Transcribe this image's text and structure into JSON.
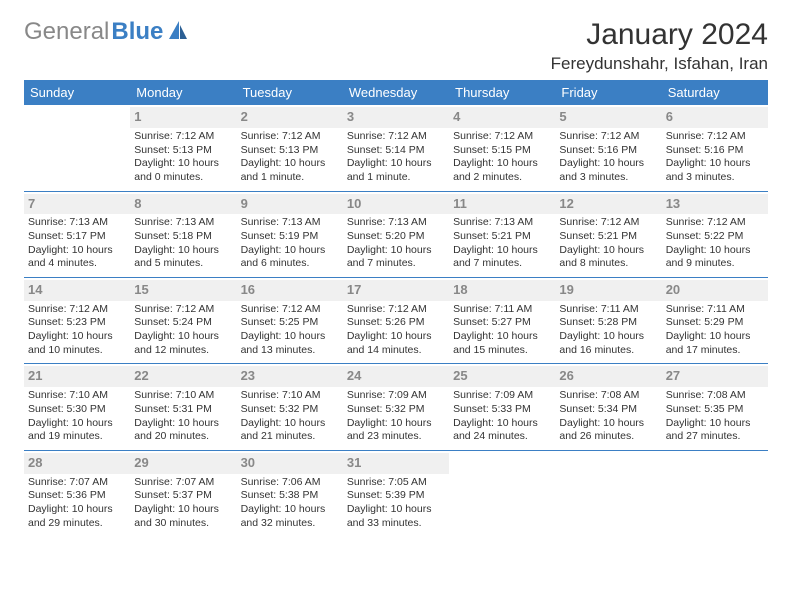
{
  "logo": {
    "gray": "General",
    "blue": "Blue"
  },
  "title": "January 2024",
  "location": "Fereydunshahr, Isfahan, Iran",
  "colors": {
    "header_bg": "#3b7fc4",
    "header_fg": "#ffffff",
    "daynum_bg": "#f0f0f0",
    "daynum_fg": "#888888"
  },
  "day_headers": [
    "Sunday",
    "Monday",
    "Tuesday",
    "Wednesday",
    "Thursday",
    "Friday",
    "Saturday"
  ],
  "weeks": [
    [
      null,
      {
        "n": "1",
        "sr": "Sunrise: 7:12 AM",
        "ss": "Sunset: 5:13 PM",
        "d1": "Daylight: 10 hours",
        "d2": "and 0 minutes."
      },
      {
        "n": "2",
        "sr": "Sunrise: 7:12 AM",
        "ss": "Sunset: 5:13 PM",
        "d1": "Daylight: 10 hours",
        "d2": "and 1 minute."
      },
      {
        "n": "3",
        "sr": "Sunrise: 7:12 AM",
        "ss": "Sunset: 5:14 PM",
        "d1": "Daylight: 10 hours",
        "d2": "and 1 minute."
      },
      {
        "n": "4",
        "sr": "Sunrise: 7:12 AM",
        "ss": "Sunset: 5:15 PM",
        "d1": "Daylight: 10 hours",
        "d2": "and 2 minutes."
      },
      {
        "n": "5",
        "sr": "Sunrise: 7:12 AM",
        "ss": "Sunset: 5:16 PM",
        "d1": "Daylight: 10 hours",
        "d2": "and 3 minutes."
      },
      {
        "n": "6",
        "sr": "Sunrise: 7:12 AM",
        "ss": "Sunset: 5:16 PM",
        "d1": "Daylight: 10 hours",
        "d2": "and 3 minutes."
      }
    ],
    [
      {
        "n": "7",
        "sr": "Sunrise: 7:13 AM",
        "ss": "Sunset: 5:17 PM",
        "d1": "Daylight: 10 hours",
        "d2": "and 4 minutes."
      },
      {
        "n": "8",
        "sr": "Sunrise: 7:13 AM",
        "ss": "Sunset: 5:18 PM",
        "d1": "Daylight: 10 hours",
        "d2": "and 5 minutes."
      },
      {
        "n": "9",
        "sr": "Sunrise: 7:13 AM",
        "ss": "Sunset: 5:19 PM",
        "d1": "Daylight: 10 hours",
        "d2": "and 6 minutes."
      },
      {
        "n": "10",
        "sr": "Sunrise: 7:13 AM",
        "ss": "Sunset: 5:20 PM",
        "d1": "Daylight: 10 hours",
        "d2": "and 7 minutes."
      },
      {
        "n": "11",
        "sr": "Sunrise: 7:13 AM",
        "ss": "Sunset: 5:21 PM",
        "d1": "Daylight: 10 hours",
        "d2": "and 7 minutes."
      },
      {
        "n": "12",
        "sr": "Sunrise: 7:12 AM",
        "ss": "Sunset: 5:21 PM",
        "d1": "Daylight: 10 hours",
        "d2": "and 8 minutes."
      },
      {
        "n": "13",
        "sr": "Sunrise: 7:12 AM",
        "ss": "Sunset: 5:22 PM",
        "d1": "Daylight: 10 hours",
        "d2": "and 9 minutes."
      }
    ],
    [
      {
        "n": "14",
        "sr": "Sunrise: 7:12 AM",
        "ss": "Sunset: 5:23 PM",
        "d1": "Daylight: 10 hours",
        "d2": "and 10 minutes."
      },
      {
        "n": "15",
        "sr": "Sunrise: 7:12 AM",
        "ss": "Sunset: 5:24 PM",
        "d1": "Daylight: 10 hours",
        "d2": "and 12 minutes."
      },
      {
        "n": "16",
        "sr": "Sunrise: 7:12 AM",
        "ss": "Sunset: 5:25 PM",
        "d1": "Daylight: 10 hours",
        "d2": "and 13 minutes."
      },
      {
        "n": "17",
        "sr": "Sunrise: 7:12 AM",
        "ss": "Sunset: 5:26 PM",
        "d1": "Daylight: 10 hours",
        "d2": "and 14 minutes."
      },
      {
        "n": "18",
        "sr": "Sunrise: 7:11 AM",
        "ss": "Sunset: 5:27 PM",
        "d1": "Daylight: 10 hours",
        "d2": "and 15 minutes."
      },
      {
        "n": "19",
        "sr": "Sunrise: 7:11 AM",
        "ss": "Sunset: 5:28 PM",
        "d1": "Daylight: 10 hours",
        "d2": "and 16 minutes."
      },
      {
        "n": "20",
        "sr": "Sunrise: 7:11 AM",
        "ss": "Sunset: 5:29 PM",
        "d1": "Daylight: 10 hours",
        "d2": "and 17 minutes."
      }
    ],
    [
      {
        "n": "21",
        "sr": "Sunrise: 7:10 AM",
        "ss": "Sunset: 5:30 PM",
        "d1": "Daylight: 10 hours",
        "d2": "and 19 minutes."
      },
      {
        "n": "22",
        "sr": "Sunrise: 7:10 AM",
        "ss": "Sunset: 5:31 PM",
        "d1": "Daylight: 10 hours",
        "d2": "and 20 minutes."
      },
      {
        "n": "23",
        "sr": "Sunrise: 7:10 AM",
        "ss": "Sunset: 5:32 PM",
        "d1": "Daylight: 10 hours",
        "d2": "and 21 minutes."
      },
      {
        "n": "24",
        "sr": "Sunrise: 7:09 AM",
        "ss": "Sunset: 5:32 PM",
        "d1": "Daylight: 10 hours",
        "d2": "and 23 minutes."
      },
      {
        "n": "25",
        "sr": "Sunrise: 7:09 AM",
        "ss": "Sunset: 5:33 PM",
        "d1": "Daylight: 10 hours",
        "d2": "and 24 minutes."
      },
      {
        "n": "26",
        "sr": "Sunrise: 7:08 AM",
        "ss": "Sunset: 5:34 PM",
        "d1": "Daylight: 10 hours",
        "d2": "and 26 minutes."
      },
      {
        "n": "27",
        "sr": "Sunrise: 7:08 AM",
        "ss": "Sunset: 5:35 PM",
        "d1": "Daylight: 10 hours",
        "d2": "and 27 minutes."
      }
    ],
    [
      {
        "n": "28",
        "sr": "Sunrise: 7:07 AM",
        "ss": "Sunset: 5:36 PM",
        "d1": "Daylight: 10 hours",
        "d2": "and 29 minutes."
      },
      {
        "n": "29",
        "sr": "Sunrise: 7:07 AM",
        "ss": "Sunset: 5:37 PM",
        "d1": "Daylight: 10 hours",
        "d2": "and 30 minutes."
      },
      {
        "n": "30",
        "sr": "Sunrise: 7:06 AM",
        "ss": "Sunset: 5:38 PM",
        "d1": "Daylight: 10 hours",
        "d2": "and 32 minutes."
      },
      {
        "n": "31",
        "sr": "Sunrise: 7:05 AM",
        "ss": "Sunset: 5:39 PM",
        "d1": "Daylight: 10 hours",
        "d2": "and 33 minutes."
      },
      null,
      null,
      null
    ]
  ]
}
